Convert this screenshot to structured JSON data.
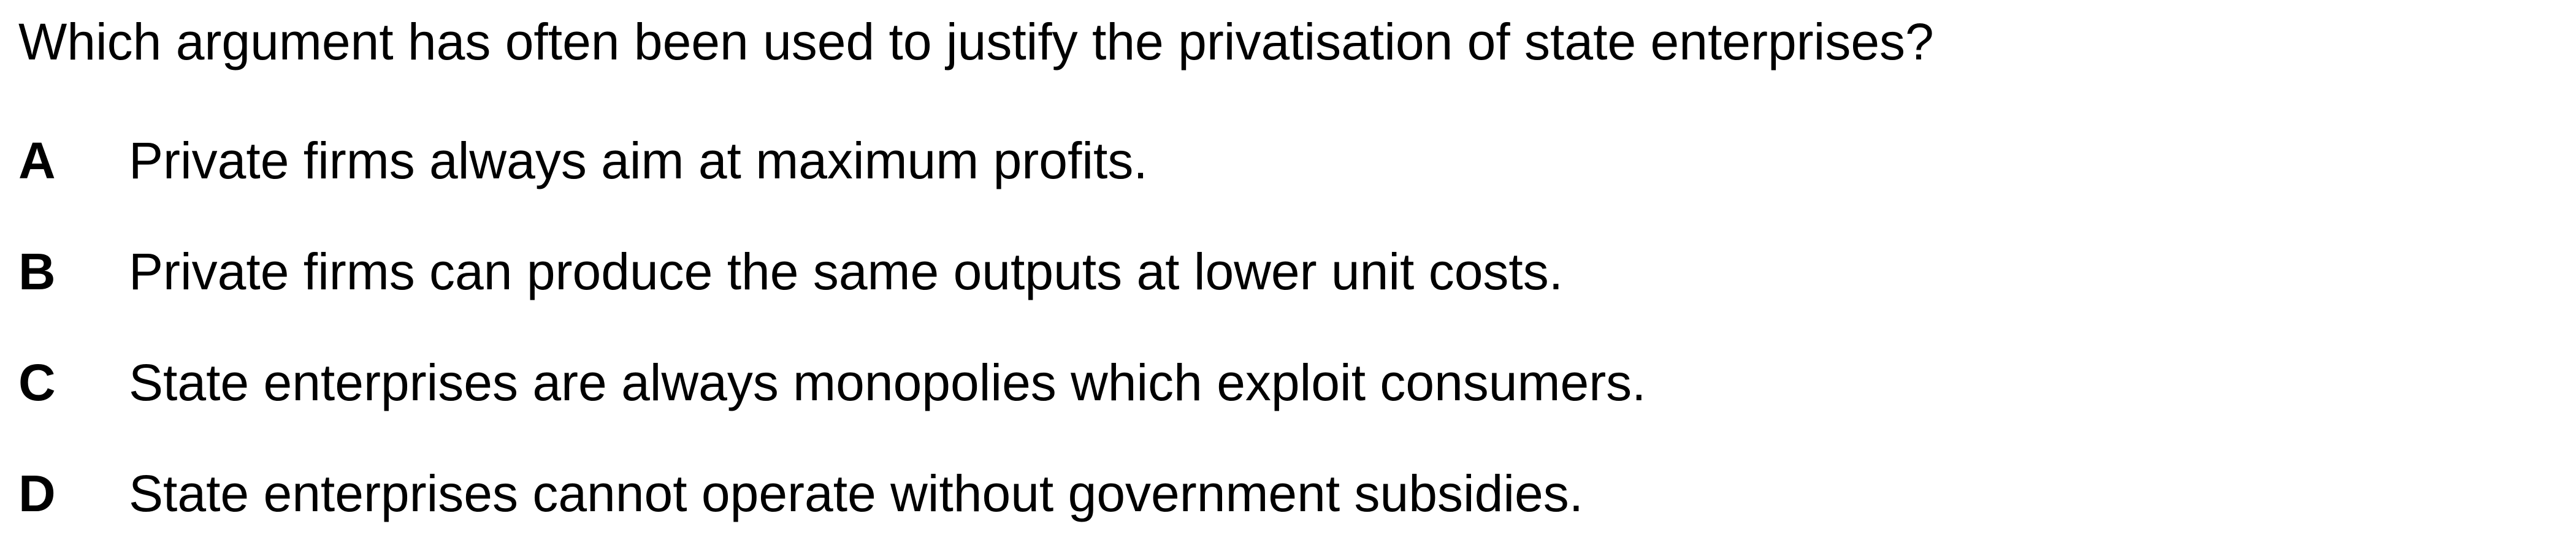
{
  "question": {
    "text": "Which argument has often been used to justify the privatisation of state enterprises?"
  },
  "options": [
    {
      "letter": "A",
      "text": "Private firms always aim at maximum profits."
    },
    {
      "letter": "B",
      "text": "Private firms can produce the same outputs at lower unit costs."
    },
    {
      "letter": "C",
      "text": "State enterprises are always monopolies which exploit consumers."
    },
    {
      "letter": "D",
      "text": "State enterprises cannot operate without government subsidies."
    }
  ]
}
